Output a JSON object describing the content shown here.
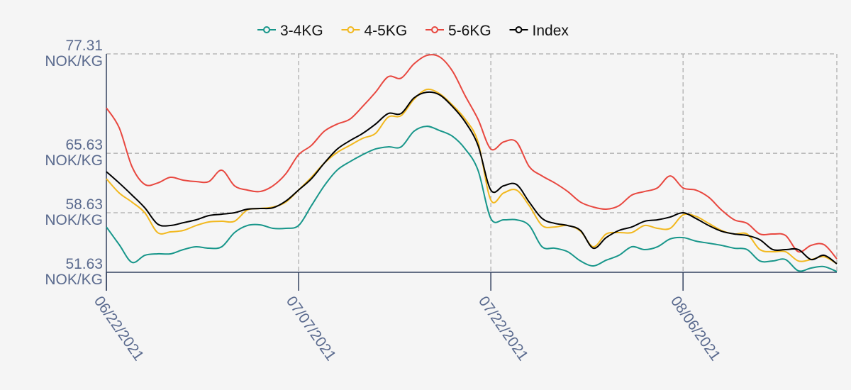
{
  "chart_data": {
    "type": "line",
    "x": [
      "06/22/2021",
      "06/23/2021",
      "06/24/2021",
      "06/25/2021",
      "06/26/2021",
      "06/27/2021",
      "06/28/2021",
      "06/29/2021",
      "06/30/2021",
      "07/01/2021",
      "07/02/2021",
      "07/03/2021",
      "07/04/2021",
      "07/05/2021",
      "07/06/2021",
      "07/07/2021",
      "07/08/2021",
      "07/09/2021",
      "07/10/2021",
      "07/11/2021",
      "07/12/2021",
      "07/13/2021",
      "07/14/2021",
      "07/15/2021",
      "07/16/2021",
      "07/17/2021",
      "07/18/2021",
      "07/19/2021",
      "07/20/2021",
      "07/21/2021",
      "07/22/2021",
      "07/23/2021",
      "07/24/2021",
      "07/25/2021",
      "07/26/2021",
      "07/27/2021",
      "07/28/2021",
      "07/29/2021",
      "07/30/2021",
      "07/31/2021",
      "08/01/2021",
      "08/02/2021",
      "08/03/2021",
      "08/04/2021",
      "08/05/2021",
      "08/06/2021",
      "08/07/2021",
      "08/08/2021",
      "08/09/2021",
      "08/10/2021",
      "08/11/2021",
      "08/12/2021",
      "08/13/2021",
      "08/14/2021",
      "08/15/2021",
      "08/16/2021",
      "08/17/2021",
      "08/18/2021"
    ],
    "series": [
      {
        "name": "3-4KG",
        "color": "#17968a",
        "values": [
          56.96,
          54.88,
          52.8,
          53.63,
          53.8,
          53.8,
          54.3,
          54.63,
          54.46,
          54.63,
          56.3,
          57.13,
          57.21,
          56.8,
          56.8,
          57.13,
          59.46,
          61.8,
          63.63,
          64.63,
          65.46,
          66.13,
          66.38,
          66.38,
          68.21,
          68.8,
          68.3,
          67.63,
          66.13,
          63.63,
          57.96,
          57.8,
          57.8,
          57.13,
          54.63,
          54.46,
          54.05,
          52.96,
          52.38,
          53.05,
          53.63,
          54.63,
          54.3,
          54.63,
          55.55,
          55.71,
          55.3,
          55.05,
          54.8,
          54.46,
          54.3,
          52.96,
          52.96,
          53.13,
          51.8,
          52.13,
          52.3,
          51.71
        ]
      },
      {
        "name": "4-5KG",
        "color": "#f2b81e",
        "values": [
          62.63,
          60.96,
          59.88,
          58.63,
          56.3,
          56.38,
          56.55,
          57.13,
          57.55,
          57.63,
          57.63,
          58.96,
          59.13,
          59.3,
          59.88,
          61.3,
          62.8,
          64.46,
          65.71,
          66.55,
          67.38,
          67.96,
          69.88,
          70.05,
          71.96,
          73.13,
          72.63,
          71.3,
          69.63,
          66.96,
          60.13,
          60.96,
          61.3,
          59.46,
          57.13,
          56.96,
          57.13,
          56.46,
          54.63,
          56.13,
          56.3,
          56.3,
          57.13,
          56.8,
          56.8,
          58.38,
          58.21,
          57.38,
          56.55,
          56.13,
          56.13,
          54.3,
          54.05,
          54.05,
          52.96,
          53.13,
          53.46,
          52.63
        ]
      },
      {
        "name": "5-6KG",
        "color": "#e8473f",
        "values": [
          70.96,
          68.63,
          64.05,
          61.96,
          62.13,
          62.8,
          62.46,
          62.3,
          62.3,
          63.63,
          61.8,
          61.3,
          61.13,
          61.8,
          63.21,
          65.46,
          66.55,
          68.21,
          69.05,
          69.63,
          71.13,
          72.8,
          74.63,
          74.46,
          76.13,
          77.13,
          76.96,
          75.3,
          72.38,
          69.63,
          66.13,
          66.96,
          66.96,
          64.05,
          62.96,
          62.13,
          61.13,
          59.88,
          59.3,
          59.05,
          59.46,
          60.71,
          61.13,
          61.55,
          62.96,
          61.55,
          61.3,
          60.46,
          58.96,
          57.8,
          57.38,
          56.13,
          56.13,
          55.96,
          54.05,
          54.8,
          54.88,
          53.21
        ]
      },
      {
        "name": "Index",
        "color": "#000000",
        "values": [
          63.46,
          62.13,
          60.71,
          59.21,
          57.3,
          57.13,
          57.46,
          57.8,
          58.3,
          58.46,
          58.63,
          59.05,
          59.13,
          59.21,
          60.0,
          61.3,
          62.63,
          64.46,
          66.1,
          67.1,
          67.96,
          69.05,
          70.3,
          70.3,
          72.13,
          72.8,
          72.5,
          71.13,
          69.3,
          66.55,
          61.3,
          61.8,
          61.96,
          59.88,
          57.96,
          57.38,
          57.13,
          56.55,
          54.46,
          55.71,
          56.55,
          56.96,
          57.63,
          57.8,
          58.13,
          58.63,
          57.96,
          57.13,
          56.46,
          56.13,
          55.96,
          55.46,
          54.3,
          54.3,
          54.3,
          53.13,
          53.63,
          52.63
        ]
      }
    ],
    "xlim": [
      "06/22/2021",
      "08/18/2021"
    ],
    "xticks": [
      "06/22/2021",
      "07/07/2021",
      "07/22/2021",
      "08/06/2021"
    ],
    "ylim": [
      51.63,
      77.31
    ],
    "yticks": [
      {
        "value": 51.63,
        "label": "51.63\nNOK/KG"
      },
      {
        "value": 58.63,
        "label": "58.63\nNOK/KG"
      },
      {
        "value": 65.63,
        "label": "65.63\nNOK/KG"
      },
      {
        "value": 77.31,
        "label": "77.31\nNOK/KG"
      }
    ],
    "grid": true,
    "legend": "top"
  }
}
